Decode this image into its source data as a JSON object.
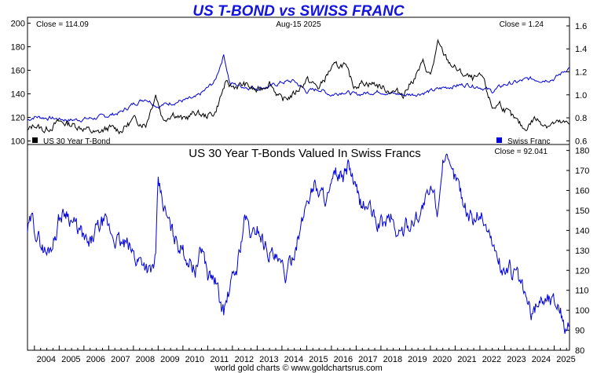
{
  "footer": "world gold charts © www.goldchartsrus.com",
  "chart_data": [
    {
      "type": "line",
      "title": "US T-BOND vs SWISS FRANC",
      "date_label": "Aug-15  2025",
      "left_close": "Close = 114.09",
      "right_close": "Close = 1.24",
      "legend": [
        {
          "label": "US 30 Year T-Bond",
          "color": "#000000"
        },
        {
          "label": "Swiss Franc",
          "color": "#0000dd"
        }
      ],
      "x_range": [
        2003.72,
        2025.62
      ],
      "left_axis": {
        "ylim": [
          97,
          205
        ],
        "ticks": [
          100,
          120,
          140,
          160,
          180,
          200
        ]
      },
      "right_axis": {
        "ylim": [
          0.568,
          1.675
        ],
        "ticks": [
          0.6,
          0.8,
          1.0,
          1.2,
          1.4,
          1.6
        ],
        "tick_labels": [
          "0.6",
          "0.8",
          "1.0",
          "1.2",
          "1.4",
          "1.6"
        ]
      },
      "series": [
        {
          "name": "US 30 Year T-Bond",
          "axis": "left",
          "color": "#000000",
          "x": [
            2003.72,
            2004.0,
            2004.4,
            2005.0,
            2005.5,
            2006.0,
            2006.5,
            2007.0,
            2007.5,
            2008.0,
            2008.5,
            2008.9,
            2009.2,
            2009.6,
            2010.0,
            2010.5,
            2010.9,
            2011.3,
            2011.7,
            2012.0,
            2012.5,
            2013.0,
            2013.5,
            2014.0,
            2014.5,
            2015.0,
            2015.5,
            2016.0,
            2016.5,
            2016.9,
            2017.3,
            2017.8,
            2018.3,
            2018.9,
            2019.3,
            2019.7,
            2020.0,
            2020.3,
            2020.7,
            2021.2,
            2021.7,
            2022.1,
            2022.5,
            2022.8,
            2023.3,
            2023.8,
            2024.2,
            2024.7,
            2025.1,
            2025.62
          ],
          "y": [
            108,
            114,
            109,
            116,
            114,
            111,
            106,
            111,
            109,
            118,
            114,
            140,
            118,
            124,
            118,
            124,
            121,
            124,
            148,
            146,
            148,
            142,
            150,
            134,
            140,
            152,
            145,
            162,
            165,
            147,
            150,
            148,
            143,
            140,
            152,
            166,
            155,
            182,
            168,
            158,
            152,
            154,
            128,
            132,
            120,
            110,
            119,
            114,
            115,
            114
          ]
        },
        {
          "name": "Swiss Franc",
          "axis": "right",
          "color": "#0000dd",
          "x": [
            2003.72,
            2004.0,
            2004.5,
            2005.0,
            2005.5,
            2006.0,
            2006.5,
            2007.0,
            2007.5,
            2008.0,
            2008.5,
            2009.0,
            2009.5,
            2010.0,
            2010.5,
            2010.9,
            2011.3,
            2011.65,
            2011.9,
            2012.5,
            2013.0,
            2013.5,
            2014.0,
            2014.5,
            2015.0,
            2015.5,
            2016.0,
            2016.5,
            2017.0,
            2017.5,
            2018.0,
            2018.5,
            2019.0,
            2019.5,
            2020.0,
            2020.5,
            2021.0,
            2021.5,
            2022.0,
            2022.5,
            2023.0,
            2023.5,
            2024.0,
            2024.5,
            2025.0,
            2025.62
          ],
          "y": [
            0.78,
            0.81,
            0.8,
            0.79,
            0.78,
            0.79,
            0.8,
            0.82,
            0.85,
            0.92,
            0.97,
            0.9,
            0.93,
            0.95,
            0.97,
            1.04,
            1.12,
            1.35,
            1.1,
            1.07,
            1.06,
            1.07,
            1.11,
            1.12,
            1.03,
            1.05,
            1.0,
            1.03,
            1.0,
            1.02,
            1.03,
            1.01,
            1.0,
            1.01,
            1.03,
            1.06,
            1.08,
            1.09,
            1.07,
            1.03,
            1.09,
            1.11,
            1.14,
            1.13,
            1.14,
            1.24
          ]
        }
      ]
    },
    {
      "type": "line",
      "title": "US 30 Year T-Bonds Valued In Swiss Francs",
      "right_close": "Close = 92.041",
      "x_range": [
        2003.72,
        2025.62
      ],
      "ylim": [
        80,
        183
      ],
      "ticks": [
        80,
        90,
        100,
        110,
        120,
        130,
        140,
        150,
        160,
        170,
        180
      ],
      "xticks": [
        "2004",
        "2005",
        "2006",
        "2007",
        "2008",
        "2009",
        "2010",
        "2011",
        "2012",
        "2013",
        "2014",
        "2015",
        "2016",
        "2017",
        "2018",
        "2019",
        "2020",
        "2021",
        "2022",
        "2023",
        "2024",
        "2025"
      ],
      "series": [
        {
          "name": "US 30 Year T-Bonds Valued In Swiss Francs",
          "color": "#0000dd",
          "x": [
            2003.72,
            2003.9,
            2004.2,
            2004.5,
            2004.8,
            2005.0,
            2005.3,
            2005.6,
            2005.9,
            2006.2,
            2006.5,
            2006.8,
            2007.2,
            2007.5,
            2007.8,
            2008.1,
            2008.4,
            2008.7,
            2008.9,
            2009.0,
            2009.3,
            2009.6,
            2010.0,
            2010.3,
            2010.5,
            2010.8,
            2011.0,
            2011.3,
            2011.5,
            2011.65,
            2011.9,
            2012.2,
            2012.5,
            2012.8,
            2013.0,
            2013.3,
            2013.6,
            2013.9,
            2014.2,
            2014.5,
            2014.8,
            2015.0,
            2015.3,
            2015.6,
            2015.9,
            2016.2,
            2016.5,
            2016.7,
            2016.9,
            2017.2,
            2017.5,
            2017.8,
            2018.1,
            2018.4,
            2018.7,
            2019.0,
            2019.3,
            2019.6,
            2019.9,
            2020.1,
            2020.3,
            2020.5,
            2020.8,
            2021.1,
            2021.4,
            2021.7,
            2022.0,
            2022.3,
            2022.6,
            2022.9,
            2023.2,
            2023.5,
            2023.8,
            2024.1,
            2024.4,
            2024.7,
            2025.0,
            2025.2,
            2025.4,
            2025.62
          ],
          "y": [
            140,
            145,
            135,
            128,
            136,
            146,
            150,
            143,
            138,
            131,
            140,
            144,
            137,
            133,
            132,
            126,
            125,
            118,
            126,
            163,
            148,
            138,
            130,
            124,
            121,
            131,
            118,
            115,
            104,
            99,
            111,
            122,
            147,
            136,
            142,
            133,
            128,
            122,
            117,
            131,
            142,
            155,
            163,
            158,
            157,
            168,
            165,
            174,
            162,
            153,
            152,
            144,
            143,
            147,
            137,
            142,
            145,
            150,
            156,
            160,
            150,
            178,
            168,
            165,
            152,
            145,
            150,
            141,
            130,
            120,
            121,
            117,
            108,
            97,
            106,
            106,
            105,
            104,
            92,
            92
          ]
        }
      ]
    }
  ]
}
